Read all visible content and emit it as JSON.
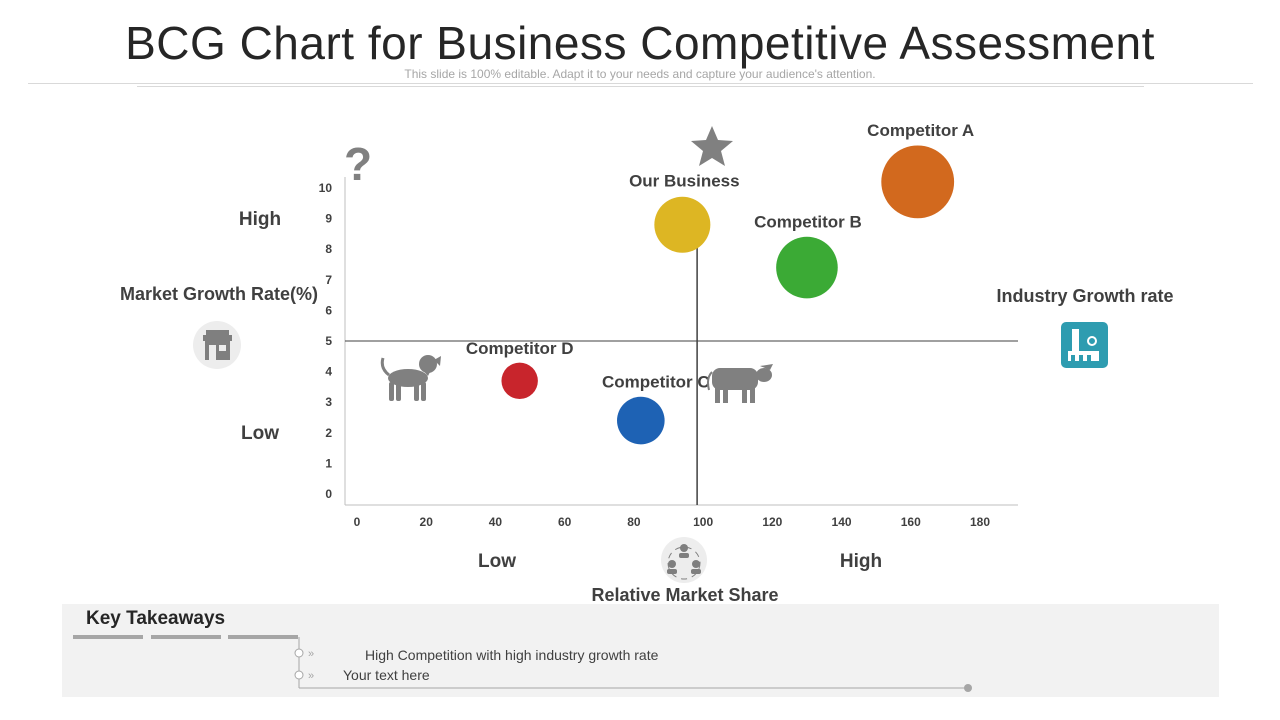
{
  "header": {
    "title": "BCG Chart for Business Competitive Assessment",
    "subtitle": "This slide is 100% editable. Adapt it to your needs and capture your audience's attention."
  },
  "labels": {
    "high_y": "High",
    "low_y": "Low",
    "low_x": "Low",
    "high_x": "High",
    "market_growth": "Market Growth Rate(%)",
    "industry_growth": "Industry Growth rate",
    "relative_share": "Relative Market Share",
    "question_mark": "?"
  },
  "chart_data": {
    "type": "scatter",
    "xlabel": "Relative Market Share",
    "ylabel": "Market Growth Rate(%)",
    "xlim": [
      0,
      180
    ],
    "ylim": [
      0,
      10
    ],
    "x_ticks": [
      "0",
      "20",
      "40",
      "60",
      "80",
      "100",
      "120",
      "140",
      "160",
      "180"
    ],
    "y_ticks": [
      "0",
      "1",
      "2",
      "3",
      "4",
      "5",
      "6",
      "7",
      "8",
      "9",
      "10"
    ],
    "divider_x": 100,
    "divider_y": 5,
    "grid": false,
    "points": [
      {
        "name": "Our Business",
        "x": 94,
        "y": 8.8,
        "size": 1.0,
        "color": "#DDB623"
      },
      {
        "name": "Competitor A",
        "x": 162,
        "y": 10.2,
        "size": 1.3,
        "color": "#D2691E"
      },
      {
        "name": "Competitor B",
        "x": 130,
        "y": 7.4,
        "size": 1.1,
        "color": "#3BAA35"
      },
      {
        "name": "Competitor C",
        "x": 82,
        "y": 2.4,
        "size": 0.85,
        "color": "#1E62B4"
      },
      {
        "name": "Competitor D",
        "x": 47,
        "y": 3.7,
        "size": 0.65,
        "color": "#C8252C"
      }
    ]
  },
  "takeaways": {
    "title": "Key Takeaways",
    "items": [
      "High Competition with high industry growth rate",
      "Your text here"
    ]
  },
  "colors": {
    "icon_gray": "#808080",
    "teal": "#2E9CB0",
    "panel": "#F2F2F2"
  }
}
